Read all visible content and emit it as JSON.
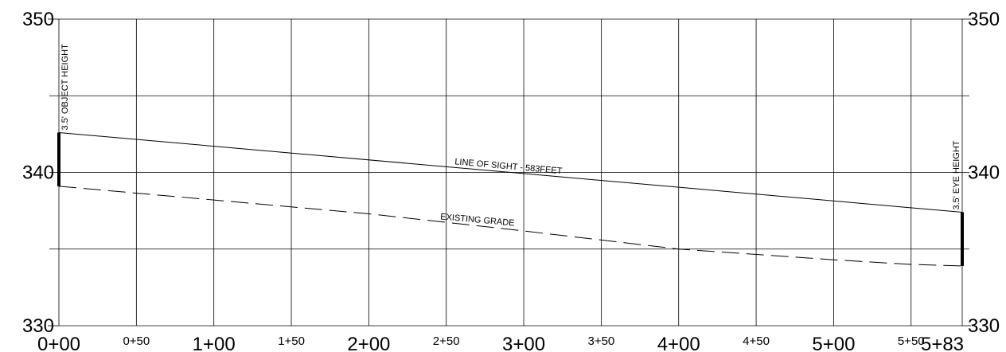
{
  "chart_data": {
    "type": "line",
    "title": "",
    "xlabel": "",
    "ylabel": "",
    "xlim": [
      0,
      583
    ],
    "ylim": [
      330,
      350
    ],
    "grid": true,
    "x_ticks": [
      {
        "value": 0,
        "label": "0+00",
        "major": true
      },
      {
        "value": 50,
        "label": "0+50",
        "major": false
      },
      {
        "value": 100,
        "label": "1+00",
        "major": true
      },
      {
        "value": 150,
        "label": "1+50",
        "major": false
      },
      {
        "value": 200,
        "label": "2+00",
        "major": true
      },
      {
        "value": 250,
        "label": "2+50",
        "major": false
      },
      {
        "value": 300,
        "label": "3+00",
        "major": true
      },
      {
        "value": 350,
        "label": "3+50",
        "major": false
      },
      {
        "value": 400,
        "label": "4+00",
        "major": true
      },
      {
        "value": 450,
        "label": "4+50",
        "major": false
      },
      {
        "value": 500,
        "label": "5+00",
        "major": true
      },
      {
        "value": 550,
        "label": "5+50",
        "major": false
      },
      {
        "value": 583,
        "label": "5+83",
        "major": true
      }
    ],
    "y_ticks": [
      {
        "value": 330,
        "label": "330"
      },
      {
        "value": 335,
        "label": ""
      },
      {
        "value": 340,
        "label": "340"
      },
      {
        "value": 345,
        "label": ""
      },
      {
        "value": 350,
        "label": "350"
      }
    ],
    "series": [
      {
        "name": "LINE OF SIGHT - 583FEET",
        "style": "solid",
        "x": [
          0,
          583
        ],
        "y": [
          342.6,
          337.4
        ]
      },
      {
        "name": "EXISTING GRADE",
        "style": "dashed",
        "x": [
          0,
          100,
          200,
          290,
          400,
          500,
          550,
          583
        ],
        "y": [
          339.1,
          338.2,
          337.3,
          336.3,
          335.0,
          334.3,
          334.0,
          333.9
        ]
      }
    ],
    "markers": [
      {
        "label": "3.5' OBJECT HEIGHT",
        "x": 0,
        "y_bottom": 339.1,
        "y_top": 342.6
      },
      {
        "label": "3.5' EYE HEIGHT",
        "x": 583,
        "y_bottom": 333.9,
        "y_top": 337.4
      }
    ]
  }
}
